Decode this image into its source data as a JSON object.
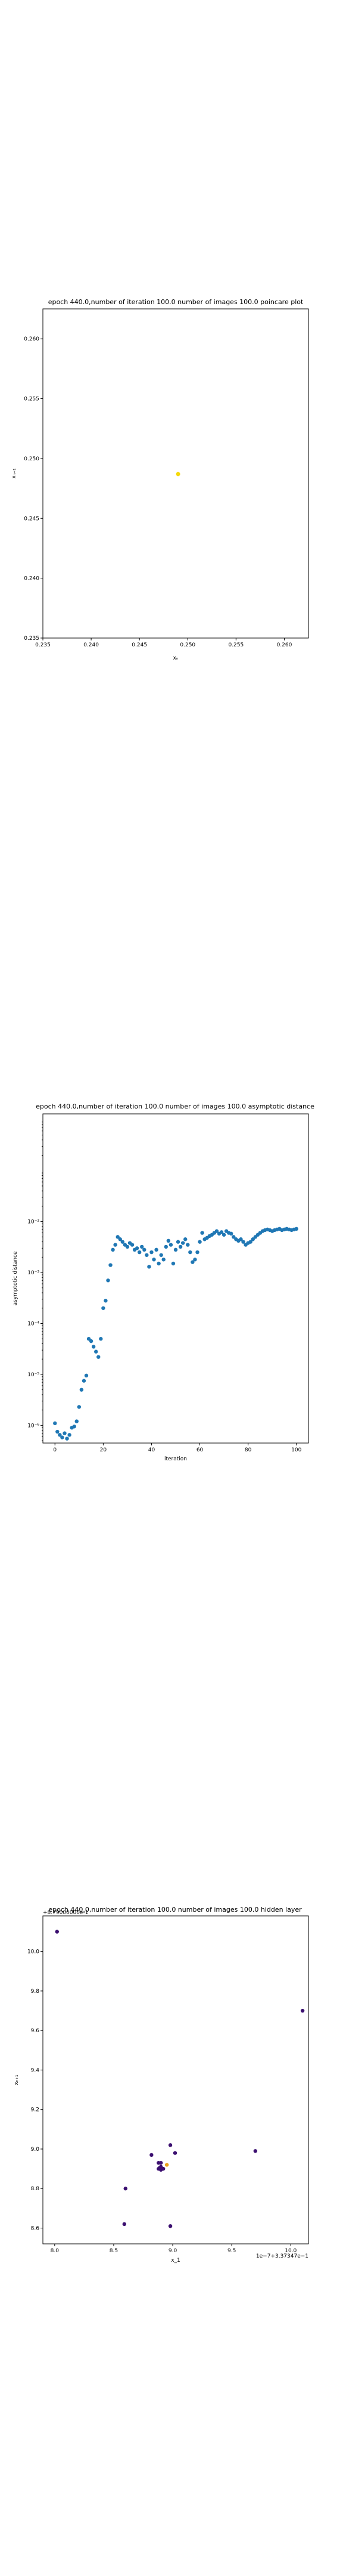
{
  "chart_data": [
    {
      "type": "scatter",
      "title": "epoch 440.0,number of iteration 100.0 number of images 100.0 poincare plot",
      "xlabel": "xₙ",
      "ylabel": "xₙ₊₁",
      "xlim": [
        0.235,
        0.2625
      ],
      "ylim": [
        0.235,
        0.2625
      ],
      "xticks": [
        "0.235",
        "0.240",
        "0.245",
        "0.250",
        "0.255",
        "0.260"
      ],
      "yticks": [
        "0.235",
        "0.240",
        "0.245",
        "0.250",
        "0.255",
        "0.260"
      ],
      "grid": false,
      "points": [
        {
          "x": 0.249,
          "y": 0.2487
        }
      ],
      "color": "#f5d90a"
    },
    {
      "type": "scatter",
      "title": "epoch 440.0,number of iteration 100.0  number of images 100.0 asymptotic distance",
      "xlabel": "iteration",
      "ylabel": "asymptotic distance",
      "xlim": [
        -5,
        105
      ],
      "ylog": true,
      "ylim": [
        4.5e-07,
        1.3
      ],
      "xticks": [
        0,
        20,
        40,
        60,
        80,
        100
      ],
      "yticks": [
        {
          "value": 1e-06,
          "label": "10⁻⁶"
        },
        {
          "value": 1e-05,
          "label": "10⁻⁵"
        },
        {
          "value": 0.0001,
          "label": "10⁻⁴"
        },
        {
          "value": 0.001,
          "label": "10⁻³"
        },
        {
          "value": 0.01,
          "label": "10⁻²"
        }
      ],
      "grid": false,
      "color": "#1f77b4",
      "x": [
        0,
        1,
        2,
        3,
        4,
        5,
        6,
        7,
        8,
        9,
        10,
        11,
        12,
        13,
        14,
        15,
        16,
        17,
        18,
        19,
        20,
        21,
        22,
        23,
        24,
        25,
        26,
        27,
        28,
        29,
        30,
        31,
        32,
        33,
        34,
        35,
        36,
        37,
        38,
        39,
        40,
        41,
        42,
        43,
        44,
        45,
        46,
        47,
        48,
        49,
        50,
        51,
        52,
        53,
        54,
        55,
        56,
        57,
        58,
        59,
        60,
        61,
        62,
        63,
        64,
        65,
        66,
        67,
        68,
        69,
        70,
        71,
        72,
        73,
        74,
        75,
        76,
        77,
        78,
        79,
        80,
        81,
        82,
        83,
        84,
        85,
        86,
        87,
        88,
        89,
        90,
        91,
        92,
        93,
        94,
        95,
        96,
        97,
        98,
        99,
        100
      ],
      "y": [
        1.1e-06,
        7.5e-07,
        6.5e-07,
        5.8e-07,
        7e-07,
        5.5e-07,
        6.5e-07,
        9e-07,
        9.5e-07,
        1.2e-06,
        2.3e-06,
        5e-06,
        7.5e-06,
        9.5e-06,
        5e-05,
        4.5e-05,
        3.5e-05,
        2.8e-05,
        2.2e-05,
        5e-05,
        0.0002,
        0.00028,
        0.0007,
        0.0014,
        0.0028,
        0.0035,
        0.005,
        0.0045,
        0.004,
        0.0035,
        0.0032,
        0.0038,
        0.0035,
        0.0028,
        0.003,
        0.0025,
        0.0032,
        0.0028,
        0.0022,
        0.0013,
        0.0025,
        0.0018,
        0.0028,
        0.0015,
        0.0022,
        0.0018,
        0.0032,
        0.0042,
        0.0035,
        0.0015,
        0.0028,
        0.004,
        0.0032,
        0.0038,
        0.0045,
        0.0035,
        0.0025,
        0.0016,
        0.0018,
        0.0025,
        0.004,
        0.006,
        0.0045,
        0.0048,
        0.0052,
        0.0055,
        0.006,
        0.0065,
        0.0058,
        0.0062,
        0.0055,
        0.0065,
        0.006,
        0.0058,
        0.005,
        0.0045,
        0.0042,
        0.0045,
        0.004,
        0.0035,
        0.0038,
        0.004,
        0.0045,
        0.005,
        0.0055,
        0.006,
        0.0065,
        0.0068,
        0.007,
        0.0068,
        0.0065,
        0.0068,
        0.007,
        0.0072,
        0.0068,
        0.007,
        0.0072,
        0.007,
        0.0068,
        0.007,
        0.0072
      ]
    },
    {
      "type": "scatter",
      "title": "epoch 440.0,number of iteration 100.0  number of images 100.0 hidden layer",
      "xlabel": "x_1",
      "ylabel": "xₙ₊₁",
      "offset_top": "+8.79000000e-1",
      "offset_x": "1e−7+3.37347e−1",
      "xlim": [
        7.9,
        10.15
      ],
      "ylim": [
        8.52,
        10.18
      ],
      "xticks": [
        "8.0",
        "8.5",
        "9.0",
        "9.5",
        "10.0"
      ],
      "yticks": [
        "8.6",
        "8.8",
        "9.0",
        "9.2",
        "9.4",
        "9.6",
        "9.8",
        "10.0"
      ],
      "grid": false,
      "point_colors": [
        "#3b0f70",
        "#3b0f70",
        "#3b0f70",
        "#3b0f70",
        "#3b0f70",
        "#3b0f70",
        "#3b0f70",
        "#3b0f70",
        "#3b0f70",
        "#3b0f70",
        "#3b0f70",
        "#3b0f70",
        "#3b0f70",
        "#3b0f70",
        "#3b0f70",
        "#3b0f70",
        "#e8a21a"
      ],
      "points": [
        {
          "x": 8.02,
          "y": 10.1
        },
        {
          "x": 10.1,
          "y": 9.7
        },
        {
          "x": 9.7,
          "y": 8.99
        },
        {
          "x": 8.6,
          "y": 8.8
        },
        {
          "x": 8.59,
          "y": 8.62
        },
        {
          "x": 8.98,
          "y": 8.61
        },
        {
          "x": 8.82,
          "y": 8.97
        },
        {
          "x": 8.88,
          "y": 8.9
        },
        {
          "x": 8.89,
          "y": 8.905
        },
        {
          "x": 8.9,
          "y": 8.895
        },
        {
          "x": 8.92,
          "y": 8.9
        },
        {
          "x": 8.9,
          "y": 8.91
        },
        {
          "x": 8.88,
          "y": 8.93
        },
        {
          "x": 8.9,
          "y": 8.93
        },
        {
          "x": 8.98,
          "y": 9.02
        },
        {
          "x": 9.02,
          "y": 8.98
        },
        {
          "x": 8.95,
          "y": 8.92
        }
      ]
    }
  ]
}
